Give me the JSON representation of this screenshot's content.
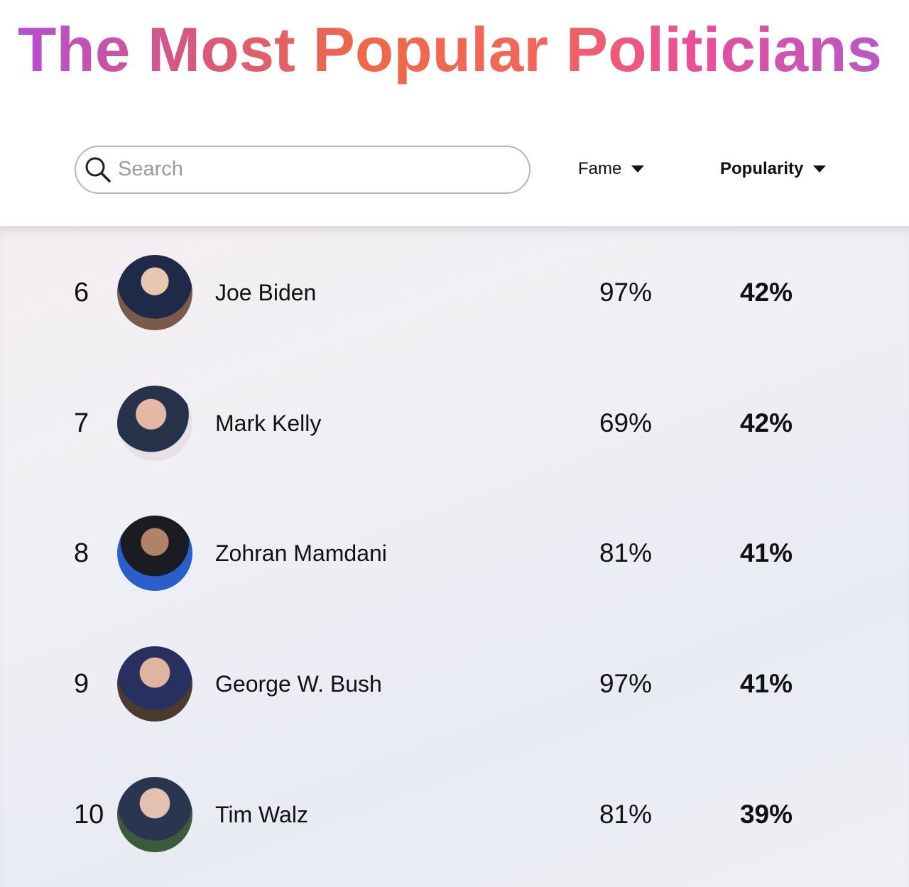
{
  "header": {
    "title": "The Most Popular Politicians"
  },
  "search": {
    "placeholder": "Search"
  },
  "columns": {
    "fame": "Fame",
    "popularity": "Popularity"
  },
  "rows": [
    {
      "rank": "6",
      "name": "Joe Biden",
      "fame": "97%",
      "popularity": "42%"
    },
    {
      "rank": "7",
      "name": "Mark Kelly",
      "fame": "69%",
      "popularity": "42%"
    },
    {
      "rank": "8",
      "name": "Zohran Mamdani",
      "fame": "81%",
      "popularity": "41%"
    },
    {
      "rank": "9",
      "name": "George W. Bush",
      "fame": "97%",
      "popularity": "41%"
    },
    {
      "rank": "10",
      "name": "Tim Walz",
      "fame": "81%",
      "popularity": "39%"
    }
  ]
}
